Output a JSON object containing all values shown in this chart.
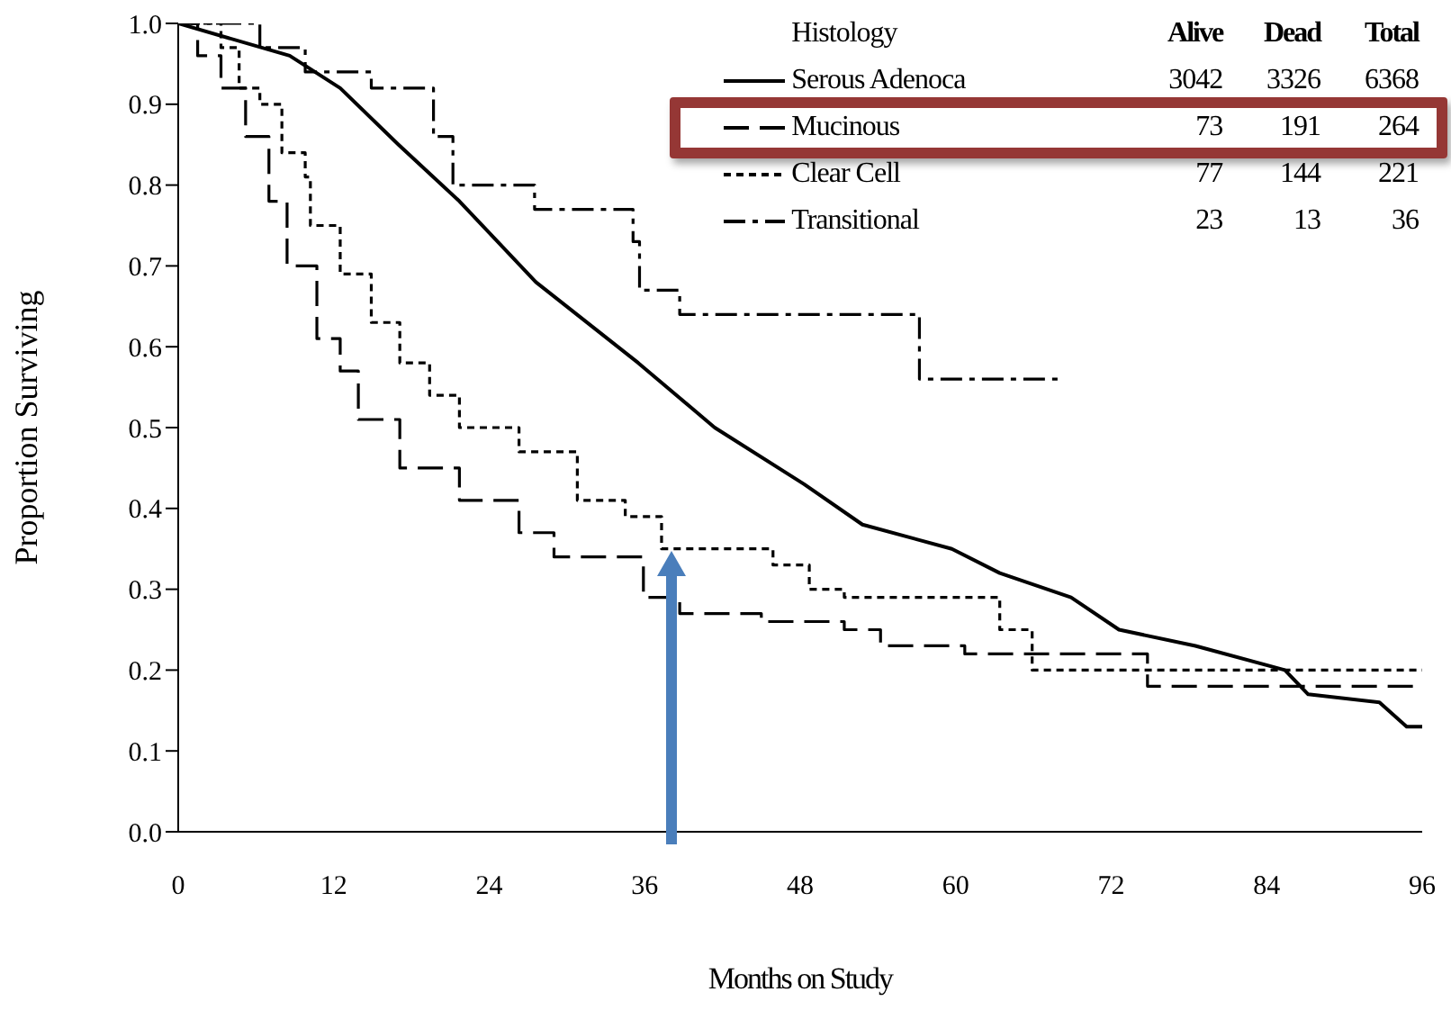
{
  "chart_data": {
    "type": "step",
    "xlabel": "Months on Study",
    "ylabel": "Proportion Surviving",
    "legend_title": "Histology",
    "legend": "top right",
    "annotations": [
      "Alive",
      "Dead",
      "Total",
      "3042",
      "3326",
      "6368",
      "73",
      "191",
      "264",
      "77",
      "144",
      "221",
      "23",
      "13",
      "36"
    ],
    "xlim": [
      0,
      96
    ],
    "xticks": [
      0,
      12,
      24,
      36,
      48,
      60,
      72,
      84,
      96
    ],
    "ylim": [
      0,
      1
    ],
    "yticks": [
      {
        "value": 0,
        "label": "0.0"
      },
      0.1,
      0.2,
      0.3,
      0.4,
      0.5,
      0.6,
      0.7,
      0.8,
      0.9,
      {
        "value": 1,
        "label": "1.0"
      }
    ],
    "marker": "none",
    "series": [
      {
        "name": "Serous Adenoca",
        "type": "line",
        "color": "#000000",
        "line_style": "solid",
        "x": [
          0,
          8.6,
          12.5,
          17,
          21.7,
          27.6,
          35.5,
          41.4,
          48.3,
          52.8,
          59.7,
          63.4,
          68.9,
          72.6,
          78.5,
          85.4,
          87.2,
          92.7,
          94.8,
          96
        ],
        "values": [
          1.0,
          0.96,
          0.92,
          0.85,
          0.78,
          0.68,
          0.58,
          0.5,
          0.43,
          0.38,
          0.35,
          0.32,
          0.29,
          0.25,
          0.23,
          0.2,
          0.17,
          0.16,
          0.13,
          0.13
        ]
      },
      {
        "name": "Mucinous",
        "color": "#000000",
        "line_style": "dashed",
        "x": [
          0,
          1.5,
          3.3,
          5.2,
          7,
          8.4,
          10.7,
          12.5,
          13.9,
          17.1,
          21.7,
          26.3,
          29,
          35.9,
          38.7,
          45,
          51.4,
          54.2,
          60.7,
          74.8,
          96
        ],
        "values": [
          1.0,
          0.96,
          0.92,
          0.86,
          0.78,
          0.7,
          0.61,
          0.57,
          0.51,
          0.45,
          0.41,
          0.37,
          0.34,
          0.29,
          0.27,
          0.26,
          0.25,
          0.23,
          0.22,
          0.18,
          0.18
        ]
      },
      {
        "name": "Clear Cell",
        "color": "#000000",
        "line_style": "dotted",
        "x": [
          0,
          3.3,
          4.7,
          6.3,
          8,
          9.8,
          10.2,
          12.5,
          14.9,
          17.1,
          19.4,
          21.7,
          26.3,
          30.8,
          34.5,
          37.3,
          45.9,
          48.7,
          51.4,
          63.4,
          65.9,
          96
        ],
        "values": [
          1.0,
          0.97,
          0.92,
          0.9,
          0.84,
          0.81,
          0.75,
          0.69,
          0.63,
          0.58,
          0.54,
          0.5,
          0.47,
          0.41,
          0.39,
          0.35,
          0.33,
          0.3,
          0.29,
          0.25,
          0.2,
          0.2
        ]
      },
      {
        "name": "Transitional",
        "color": "#000000",
        "line_style": "dashdot",
        "x": [
          0,
          6.3,
          9.8,
          14.9,
          19.7,
          21.2,
          27.5,
          35.1,
          35.6,
          38.7,
          57.2,
          68.1
        ],
        "values": [
          1.0,
          0.97,
          0.94,
          0.92,
          0.86,
          0.8,
          0.77,
          0.73,
          0.67,
          0.64,
          0.56,
          0.56
        ]
      }
    ]
  }
}
